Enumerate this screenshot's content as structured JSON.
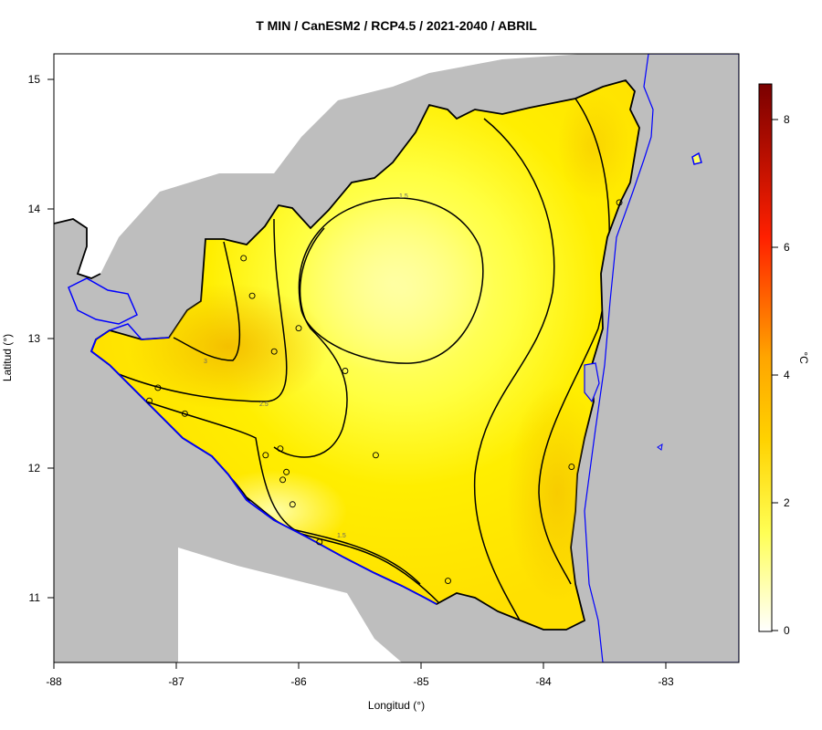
{
  "title": "T MIN / CanESM2 / RCP4.5 / 2021-2040 / ABRIL",
  "xlabel": "Longitud (°)",
  "ylabel": "Latitud (°)",
  "unit": "°C",
  "x_ticks": [
    "-88",
    "-87",
    "-86",
    "-85",
    "-84",
    "-83"
  ],
  "y_ticks": [
    "11",
    "12",
    "13",
    "14",
    "15"
  ],
  "colorbar_ticks": [
    "0",
    "2",
    "4",
    "6",
    "8"
  ],
  "contour_labels": [
    "1.5",
    "3",
    "2.5",
    "1.5"
  ],
  "colors": {
    "land_outside": "#bebebe",
    "coastline": "#0000ff",
    "field_low": "#ffff80",
    "field_mid": "#ffee00",
    "field_high": "#f5c400",
    "colorbar_stops": [
      "#ffffff",
      "#ffff66",
      "#ffd700",
      "#ff8c00",
      "#ff0000",
      "#8b0000"
    ]
  },
  "chart_data": {
    "type": "heatmap",
    "title": "T MIN / CanESM2 / RCP4.5 / 2021-2040 / ABRIL",
    "xlabel": "Longitud (°)",
    "ylabel": "Latitud (°)",
    "xlim": [
      -88,
      -82.4
    ],
    "ylim": [
      10.5,
      15.2
    ],
    "colorbar": {
      "label": "°C",
      "range": [
        0,
        8.5
      ],
      "ticks": [
        0,
        2,
        4,
        6,
        8
      ]
    },
    "contour_levels": [
      1.5,
      2,
      2.5,
      3
    ],
    "stations": [
      {
        "lon": -86.45,
        "lat": 13.62
      },
      {
        "lon": -86.38,
        "lat": 13.33
      },
      {
        "lon": -86.0,
        "lat": 13.08
      },
      {
        "lon": -86.2,
        "lat": 12.9
      },
      {
        "lon": -85.62,
        "lat": 12.75
      },
      {
        "lon": -87.15,
        "lat": 12.62
      },
      {
        "lon": -87.22,
        "lat": 12.52
      },
      {
        "lon": -86.93,
        "lat": 12.42
      },
      {
        "lon": -86.27,
        "lat": 12.1
      },
      {
        "lon": -86.15,
        "lat": 12.15
      },
      {
        "lon": -86.1,
        "lat": 11.97
      },
      {
        "lon": -86.13,
        "lat": 11.91
      },
      {
        "lon": -86.05,
        "lat": 11.72
      },
      {
        "lon": -85.83,
        "lat": 11.43
      },
      {
        "lon": -85.37,
        "lat": 12.1
      },
      {
        "lon": -84.78,
        "lat": 11.13
      },
      {
        "lon": -83.77,
        "lat": 12.01
      },
      {
        "lon": -83.38,
        "lat": 14.05
      }
    ]
  }
}
